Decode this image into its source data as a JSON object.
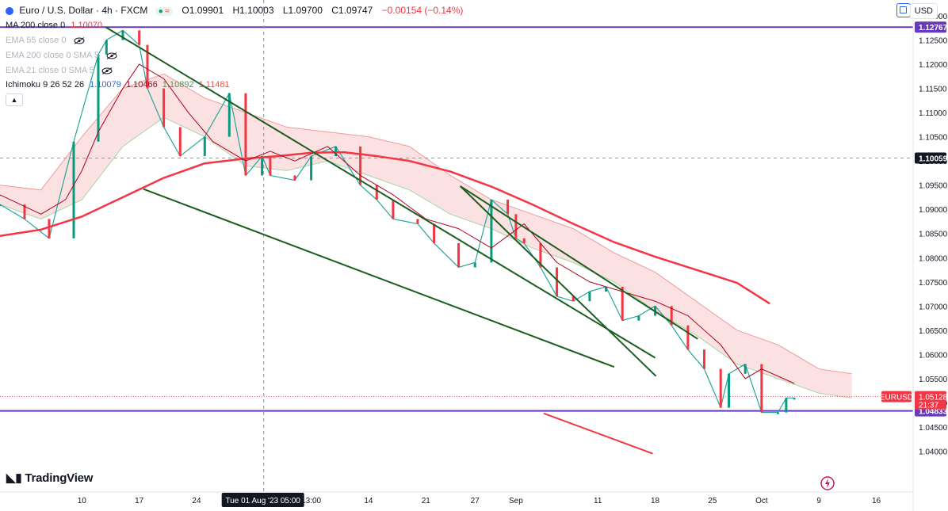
{
  "header": {
    "symbol": "Euro / U.S. Dollar · 4h · FXCM",
    "open": "O1.09901",
    "high": "H1.10003",
    "low": "L1.09700",
    "close": "C1.09747",
    "change": "−0.00154 (−0.14%)"
  },
  "indicators": {
    "ma200": {
      "label": "MA 200 close 0",
      "value": "1.10070"
    },
    "ema55": {
      "label": "EMA 55 close 0"
    },
    "ema200": {
      "label": "EMA 200 close 0 SMA 5"
    },
    "ema21": {
      "label": "EMA 21 close 0 SMA 5"
    },
    "ichimoku": {
      "label": "Ichimoku 9 26 52 26",
      "v1": "1.10079",
      "v2": "1.10466",
      "v3": "1.10892",
      "v4": "1.11481"
    }
  },
  "currency": "USD",
  "brand": "TradingView",
  "chart_data": {
    "type": "line",
    "title": "Euro / U.S. Dollar · 4h · FXCM",
    "symbol": "EURUSD",
    "ylim": [
      1.035,
      1.13
    ],
    "y_ticks": [
      "1.13000",
      "1.12500",
      "1.12000",
      "1.11500",
      "1.11000",
      "1.10500",
      "1.10000",
      "1.09500",
      "1.09000",
      "1.08500",
      "1.08000",
      "1.07500",
      "1.07000",
      "1.06500",
      "1.06000",
      "1.05500",
      "1.05000",
      "1.04500",
      "1.04000"
    ],
    "y_tick_values": [
      1.13,
      1.125,
      1.12,
      1.115,
      1.11,
      1.105,
      1.1,
      1.095,
      1.09,
      1.085,
      1.08,
      1.075,
      1.07,
      1.065,
      1.06,
      1.055,
      1.05,
      1.045,
      1.04
    ],
    "x_ticks": [
      "10",
      "17",
      "24",
      "13:00",
      "14",
      "21",
      "27",
      "Sep",
      "11",
      "18",
      "25",
      "Oct",
      "9",
      "16"
    ],
    "x_tick_days": [
      10,
      17,
      24,
      38,
      45,
      52,
      58,
      63,
      73,
      80,
      87,
      93,
      100,
      107
    ],
    "crosshair_label": "Tue 01 Aug '23   05:00",
    "crosshair_day": 32.2,
    "crosshair_price": "1.10059",
    "crosshair_price_value": 1.10059,
    "horizontal_levels": [
      {
        "label": "1.12767",
        "value": 1.12767,
        "color": "#673ab7"
      },
      {
        "label": "1.04833",
        "value": 1.04833,
        "color": "#673ab7"
      }
    ],
    "last_price": {
      "symbol": "EURUSD",
      "value": "1.05128",
      "price": 1.05128,
      "countdown": "21:37",
      "color": "#f23645"
    },
    "series": [
      {
        "role": "price",
        "x": [
          0,
          3,
          6,
          9,
          12,
          13,
          15,
          17,
          18,
          20,
          22,
          25,
          28,
          30,
          32,
          33,
          36,
          38,
          41,
          44,
          46,
          48,
          51,
          53,
          56,
          58,
          60,
          62,
          63,
          64,
          66,
          68,
          70,
          72,
          74,
          76,
          78,
          80,
          82,
          84,
          86,
          88,
          89,
          91,
          93,
          95,
          96,
          97
        ],
        "values": [
          1.091,
          1.088,
          1.084,
          1.104,
          1.122,
          1.125,
          1.127,
          1.124,
          1.115,
          1.107,
          1.101,
          1.105,
          1.114,
          1.097,
          1.101,
          1.097,
          1.096,
          1.101,
          1.103,
          1.095,
          1.092,
          1.088,
          1.087,
          1.083,
          1.078,
          1.079,
          1.092,
          1.089,
          1.084,
          1.083,
          1.078,
          1.072,
          1.071,
          1.073,
          1.074,
          1.067,
          1.068,
          1.07,
          1.066,
          1.061,
          1.057,
          1.049,
          1.056,
          1.058,
          1.048,
          1.048,
          1.051,
          1.051
        ]
      },
      {
        "role": "ma-200",
        "color": "#f23645",
        "x": [
          0,
          5,
          10,
          15,
          20,
          25,
          30,
          34,
          38,
          42,
          46,
          50,
          55,
          60,
          65,
          70,
          75,
          80,
          85,
          90,
          94
        ],
        "values": [
          1.0845,
          1.0858,
          1.0885,
          1.0925,
          1.0965,
          1.0995,
          1.1005,
          1.101,
          1.1017,
          1.1018,
          1.101,
          1.1,
          1.0978,
          1.0947,
          1.091,
          1.087,
          1.0832,
          1.0802,
          1.0775,
          1.0748,
          1.0705
        ]
      },
      {
        "role": "kijun",
        "color": "#b2001a",
        "x": [
          0,
          5,
          8,
          10,
          12,
          15,
          17,
          20,
          23,
          26,
          30,
          33,
          36,
          40,
          44,
          48,
          52,
          56,
          60,
          64,
          68,
          72,
          76,
          80,
          84,
          88,
          91,
          93,
          97
        ],
        "values": [
          1.093,
          1.089,
          1.092,
          1.098,
          1.106,
          1.115,
          1.12,
          1.117,
          1.11,
          1.104,
          1.1,
          1.102,
          1.1,
          1.103,
          1.097,
          1.093,
          1.088,
          1.086,
          1.082,
          1.087,
          1.079,
          1.075,
          1.073,
          1.071,
          1.068,
          1.062,
          1.055,
          1.057,
          1.054
        ]
      },
      {
        "role": "cloud-upper",
        "x": [
          0,
          5,
          10,
          15,
          20,
          25,
          30,
          35,
          40,
          45,
          50,
          55,
          60,
          65,
          70,
          75,
          80,
          85,
          90,
          95,
          100,
          104
        ],
        "values": [
          1.095,
          1.094,
          1.105,
          1.115,
          1.118,
          1.113,
          1.11,
          1.107,
          1.106,
          1.105,
          1.103,
          1.097,
          1.092,
          1.089,
          1.086,
          1.081,
          1.077,
          1.071,
          1.065,
          1.062,
          1.057,
          1.056
        ]
      },
      {
        "role": "cloud-lower",
        "x": [
          0,
          5,
          10,
          15,
          20,
          25,
          30,
          35,
          40,
          45,
          50,
          55,
          60,
          65,
          70,
          75,
          80,
          85,
          90,
          95,
          100,
          104
        ],
        "values": [
          1.091,
          1.088,
          1.092,
          1.103,
          1.109,
          1.105,
          1.099,
          1.098,
          1.1,
          1.097,
          1.094,
          1.089,
          1.086,
          1.082,
          1.079,
          1.075,
          1.069,
          1.064,
          1.058,
          1.055,
          1.052,
          1.051
        ]
      }
    ],
    "trendlines": [
      {
        "color": "#1b5e20",
        "x": [
          12.9,
          80
        ],
        "values": [
          1.12767,
          1.0593
        ]
      },
      {
        "color": "#1b5e20",
        "x": [
          17.5,
          75
        ],
        "values": [
          1.0942,
          1.0574
        ]
      },
      {
        "color": "#1b5e20",
        "x": [
          56.2,
          80.1
        ],
        "values": [
          1.0948,
          1.0555
        ]
      },
      {
        "color": "#1b5e20",
        "x": [
          56.2,
          85.2
        ],
        "values": [
          1.0948,
          1.0632
        ]
      },
      {
        "color": "#f23645",
        "x": [
          66.4,
          79.7
        ],
        "values": [
          1.0478,
          1.0395
        ]
      }
    ]
  }
}
